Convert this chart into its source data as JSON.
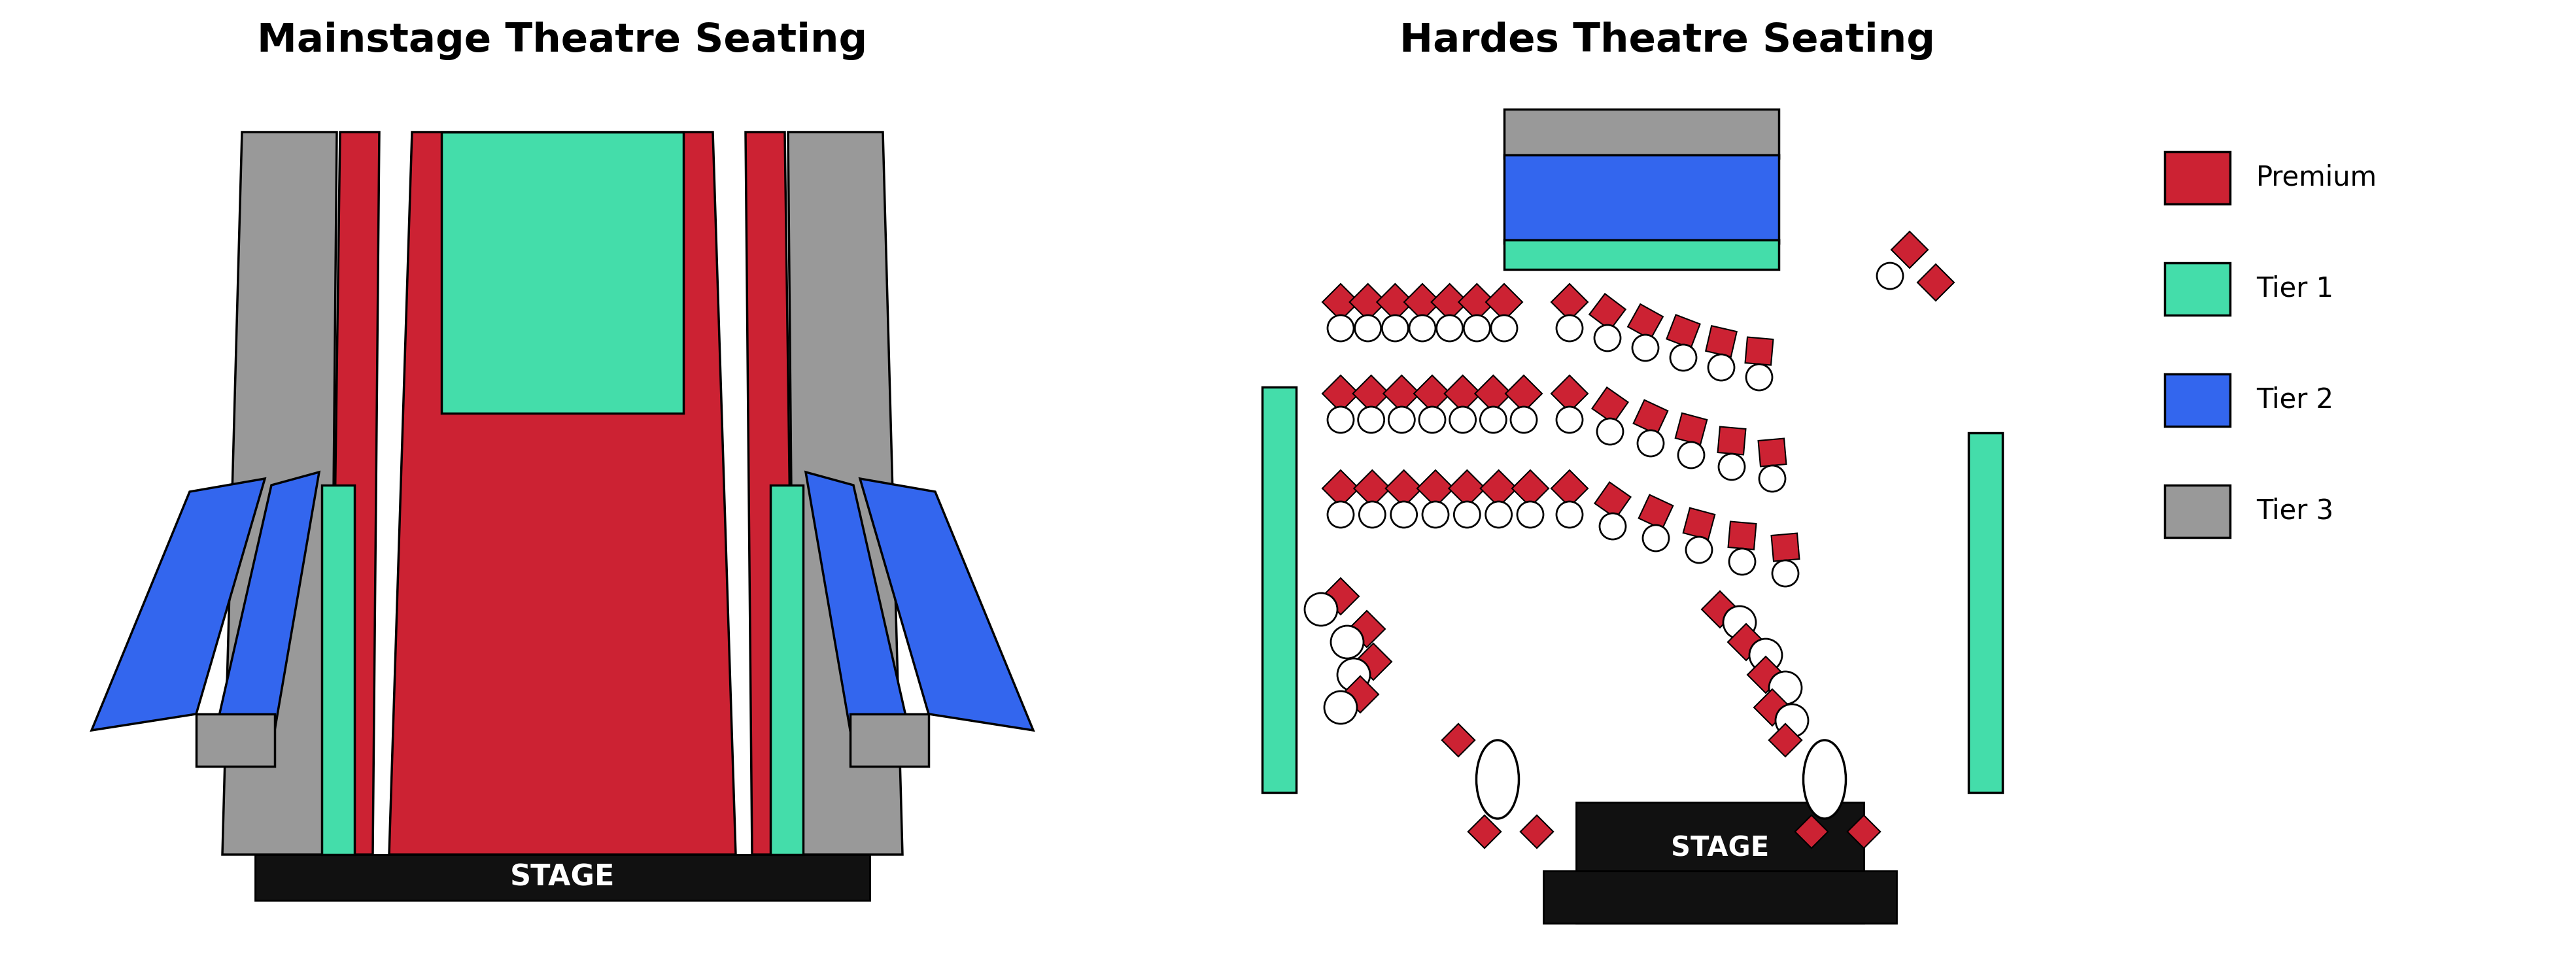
{
  "title_left": "Mainstage Theatre Seating",
  "title_right": "Hardes Theatre Seating",
  "colors": {
    "premium": "#CC2233",
    "tier1": "#44DDAA",
    "tier2": "#3366EE",
    "tier3": "#999999",
    "black": "#111111",
    "white": "#FFFFFF",
    "outline": "#000000"
  },
  "legend_labels": [
    "Premium",
    "Tier 1",
    "Tier 2",
    "Tier 3"
  ],
  "legend_colors": [
    "#CC2233",
    "#44DDAA",
    "#3366EE",
    "#999999"
  ]
}
